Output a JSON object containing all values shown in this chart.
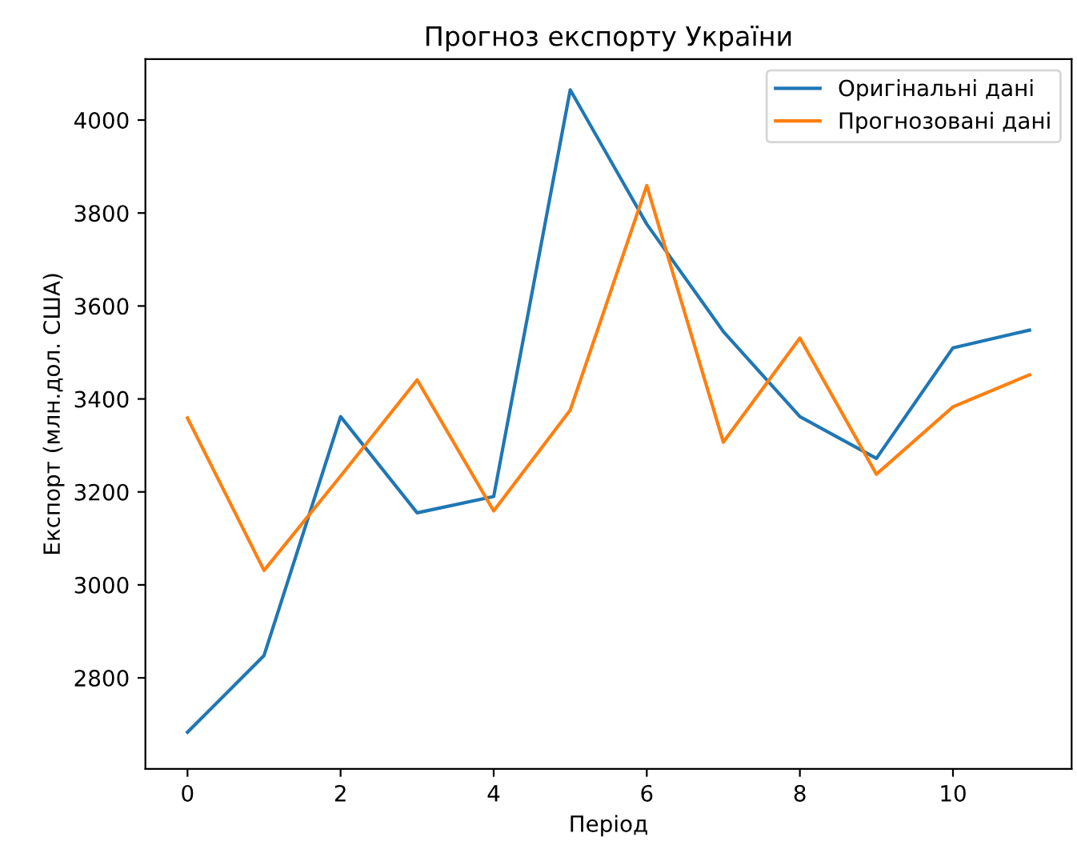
{
  "chart_data": {
    "type": "line",
    "title": "Прогноз експорту України",
    "xlabel": "Період",
    "ylabel": "Експорт (млн.дол. США)",
    "x": [
      0,
      1,
      2,
      3,
      4,
      5,
      6,
      7,
      8,
      9,
      10,
      11
    ],
    "series": [
      {
        "name": "Оригінальні дані",
        "color": "#1f77b4",
        "values": [
          2683,
          2848,
          3362,
          3155,
          3190,
          4065,
          3776,
          3545,
          3362,
          3272,
          3510,
          3548
        ]
      },
      {
        "name": "Прогнозовані дані",
        "color": "#ff7f0e",
        "values": [
          3359,
          3031,
          3234,
          3441,
          3159,
          3376,
          3859,
          3307,
          3531,
          3238,
          3383,
          3452
        ]
      }
    ],
    "xlim": [
      -0.55,
      11.55
    ],
    "ylim": [
      2604,
      4131
    ],
    "xticks": [
      0,
      2,
      4,
      6,
      8,
      10
    ],
    "yticks": [
      2800,
      3000,
      3200,
      3400,
      3600,
      3800,
      4000
    ],
    "grid": false,
    "legend": "top right",
    "marker": "none",
    "line_style": "solid"
  }
}
